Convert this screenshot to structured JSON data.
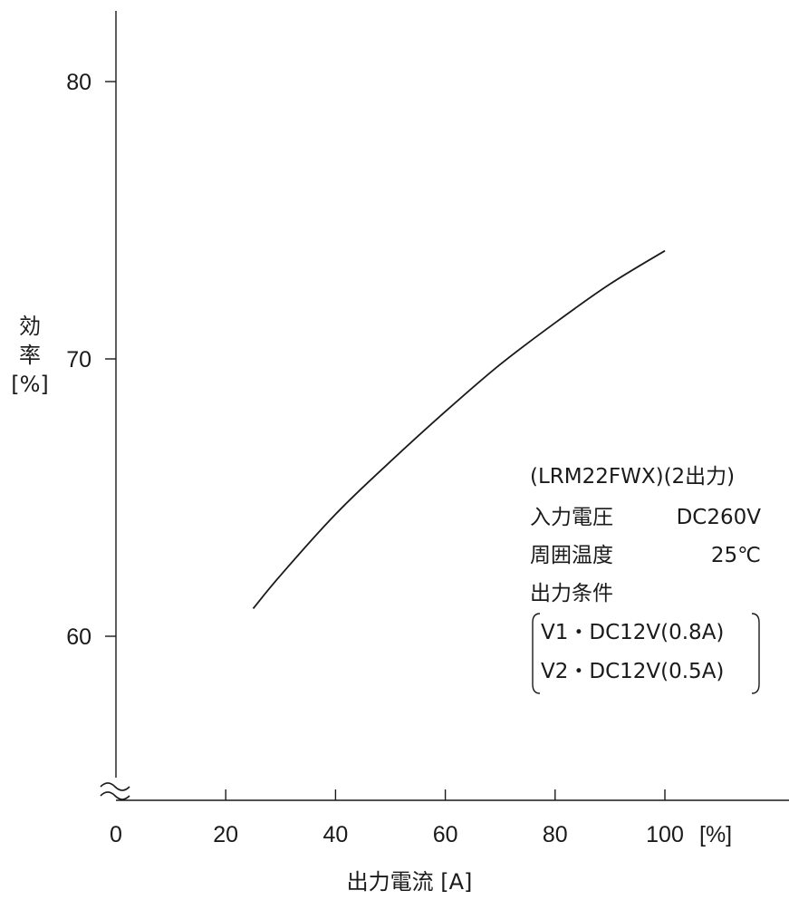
{
  "chart_data": {
    "type": "line",
    "title": "",
    "xlabel": "出力電流 [A]",
    "ylabel": "効率 [%]",
    "xlim": [
      0,
      120
    ],
    "ylim": [
      55,
      82
    ],
    "axis_break_on_y": true,
    "grid": false,
    "x_ticks": [
      {
        "value": 0,
        "label": "0"
      },
      {
        "value": 20,
        "label": "20"
      },
      {
        "value": 40,
        "label": "40"
      },
      {
        "value": 60,
        "label": "60"
      },
      {
        "value": 80,
        "label": "80"
      },
      {
        "value": 100,
        "label": "100"
      }
    ],
    "x_unit_label": "[%]",
    "y_ticks": [
      {
        "value": 60,
        "label": "60"
      },
      {
        "value": 70,
        "label": "70"
      },
      {
        "value": 80,
        "label": "80"
      }
    ],
    "series": [
      {
        "x": [
          25,
          30,
          40,
          50,
          60,
          70,
          80,
          90,
          100
        ],
        "y": [
          61.0,
          62.2,
          64.4,
          66.3,
          68.1,
          69.8,
          71.3,
          72.7,
          73.9
        ]
      }
    ],
    "annotations": {
      "lines": [
        "(LRM22FWX)(2出力)",
        "出力条件"
      ],
      "conditions": [
        {
          "label": "入力電圧",
          "value": "DC260V"
        },
        {
          "label": "周囲温度",
          "value": "25℃"
        }
      ],
      "bracket_lines": [
        "V1・DC12V(0.8A)",
        "V2・DC12V(0.5A)"
      ]
    }
  }
}
